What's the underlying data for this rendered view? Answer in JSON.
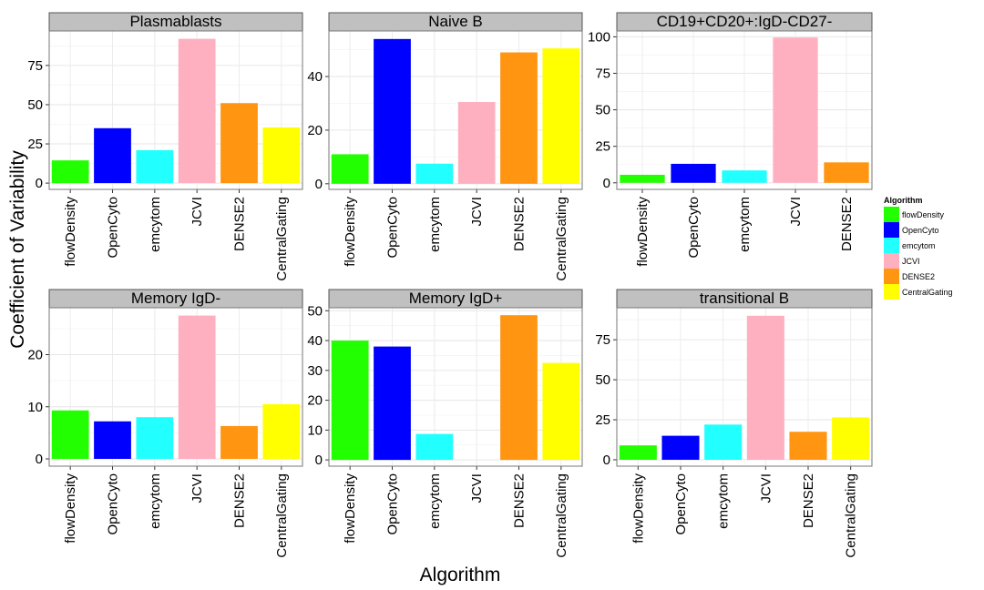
{
  "chart_data": {
    "type": "bar",
    "ylabel": "Coefficient of Variability",
    "xlabel": "Algorithm",
    "legend": {
      "title": "Algorithm",
      "placement": "right",
      "entries": [
        {
          "name": "flowDensity",
          "color": "#22ff00"
        },
        {
          "name": "OpenCyto",
          "color": "#0000ff"
        },
        {
          "name": "emcytom",
          "color": "#22ffff"
        },
        {
          "name": "JCVI",
          "color": "#ffb0c0"
        },
        {
          "name": "DENSE2",
          "color": "#ff9510"
        },
        {
          "name": "CentralGating",
          "color": "#ffff00"
        }
      ]
    },
    "grid": true,
    "panels": [
      {
        "title": "Plasmablasts",
        "categories": [
          "flowDensity",
          "OpenCyto",
          "emcytom",
          "JCVI",
          "DENSE2",
          "CentralGating"
        ],
        "values": [
          14.5,
          35,
          21,
          92,
          51,
          35.5
        ],
        "ylim": [
          -4,
          97
        ],
        "yticks": [
          0,
          25,
          50,
          75
        ]
      },
      {
        "title": "Naive B",
        "categories": [
          "flowDensity",
          "OpenCyto",
          "emcytom",
          "JCVI",
          "DENSE2",
          "CentralGating"
        ],
        "values": [
          11,
          54,
          7.5,
          30.5,
          49,
          50.5
        ],
        "ylim": [
          -2.1,
          57
        ],
        "yticks": [
          0,
          20,
          40
        ]
      },
      {
        "title": "CD19+CD20+:IgD-CD27-",
        "categories": [
          "flowDensity",
          "OpenCyto",
          "emcytom",
          "JCVI",
          "DENSE2"
        ],
        "values": [
          5.5,
          13,
          8.5,
          99.5,
          14
        ],
        "ylim": [
          -4.5,
          104
        ],
        "yticks": [
          0,
          25,
          50,
          75,
          100
        ]
      },
      {
        "title": "Memory IgD-",
        "categories": [
          "flowDensity",
          "OpenCyto",
          "emcytom",
          "JCVI",
          "DENSE2",
          "CentralGating"
        ],
        "values": [
          9.3,
          7.2,
          8,
          27.5,
          6.3,
          10.5
        ],
        "ylim": [
          -1.4,
          29
        ],
        "yticks": [
          0,
          10,
          20
        ]
      },
      {
        "title": "Memory IgD+",
        "categories": [
          "flowDensity",
          "OpenCyto",
          "emcytom",
          "JCVI",
          "DENSE2",
          "CentralGating"
        ],
        "values": [
          40,
          38,
          8.7,
          0,
          48.5,
          32.5
        ],
        "ylim": [
          -2.1,
          51
        ],
        "yticks": [
          0,
          10,
          20,
          30,
          40,
          50
        ]
      },
      {
        "title": "transitional B",
        "categories": [
          "flowDensity",
          "OpenCyto",
          "emcytom",
          "JCVI",
          "DENSE2",
          "CentralGating"
        ],
        "values": [
          9,
          15,
          22,
          90,
          17.5,
          26.5
        ],
        "ylim": [
          -4,
          95
        ],
        "yticks": [
          0,
          25,
          50,
          75
        ]
      }
    ]
  }
}
